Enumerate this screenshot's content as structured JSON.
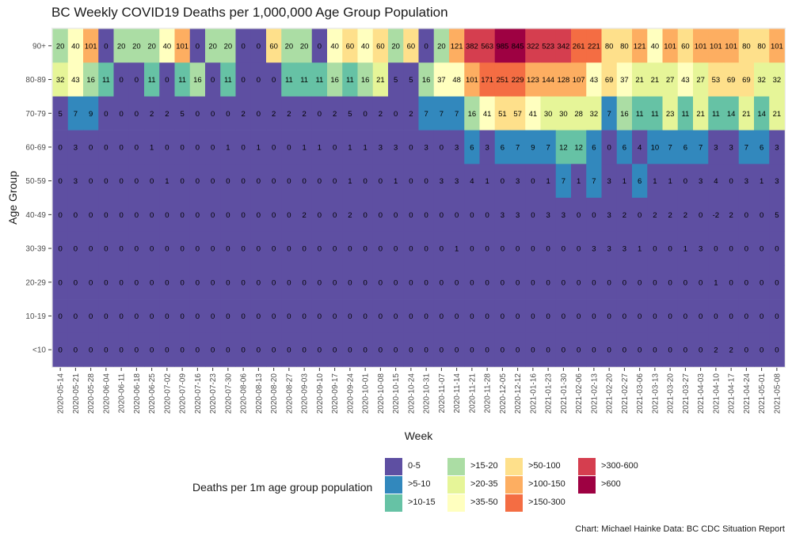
{
  "chart_data": {
    "type": "heatmap",
    "title": "BC Weekly COVID19 Deaths per 1,000,000 Age Group Population",
    "xlabel": "Week",
    "ylabel": "Age Group",
    "caption": "Chart: Michael Hainke Data: BC CDC Situation Report",
    "x": [
      "2020-05-14",
      "2020-05-21",
      "2020-05-28",
      "2020-06-04",
      "2020-06-11",
      "2020-06-18",
      "2020-06-25",
      "2020-07-02",
      "2020-07-09",
      "2020-07-16",
      "2020-07-23",
      "2020-07-30",
      "2020-08-06",
      "2020-08-13",
      "2020-08-20",
      "2020-08-27",
      "2020-09-03",
      "2020-09-10",
      "2020-09-17",
      "2020-09-24",
      "2020-10-01",
      "2020-10-08",
      "2020-10-15",
      "2020-10-24",
      "2020-10-31",
      "2020-11-07",
      "2020-11-14",
      "2020-11-21",
      "2020-11-28",
      "2020-12-05",
      "2020-12-12",
      "2021-01-16",
      "2021-01-23",
      "2021-01-30",
      "2021-02-06",
      "2021-02-13",
      "2021-02-20",
      "2021-02-27",
      "2021-03-06",
      "2021-03-13",
      "2021-03-20",
      "2021-03-27",
      "2021-04-03",
      "2021-04-10",
      "2021-04-17",
      "2021-04-24",
      "2021-05-01",
      "2021-05-08"
    ],
    "y": [
      "90+",
      "80-89",
      "70-79",
      "60-69",
      "50-59",
      "40-49",
      "30-39",
      "20-29",
      "10-19",
      "<10"
    ],
    "values": [
      [
        20,
        40,
        101,
        0,
        20,
        20,
        20,
        40,
        101,
        0,
        20,
        20,
        0,
        0,
        60,
        20,
        20,
        0,
        40,
        60,
        40,
        60,
        20,
        60,
        0,
        20,
        121,
        382,
        563,
        985,
        845,
        322,
        523,
        342,
        261,
        221,
        80,
        80,
        121,
        40,
        101,
        60,
        101,
        101,
        101,
        80,
        80,
        101
      ],
      [
        32,
        43,
        16,
        11,
        0,
        0,
        11,
        0,
        11,
        16,
        0,
        11,
        0,
        0,
        0,
        11,
        11,
        11,
        16,
        11,
        16,
        21,
        5,
        5,
        16,
        37,
        48,
        101,
        171,
        251,
        229,
        123,
        144,
        128,
        107,
        43,
        69,
        37,
        21,
        21,
        27,
        43,
        27,
        53,
        69,
        69,
        32,
        32
      ],
      [
        5,
        7,
        9,
        0,
        0,
        0,
        2,
        2,
        5,
        0,
        0,
        0,
        2,
        0,
        2,
        2,
        2,
        0,
        2,
        5,
        0,
        2,
        0,
        2,
        7,
        7,
        7,
        16,
        41,
        51,
        57,
        41,
        30,
        30,
        28,
        32,
        7,
        16,
        11,
        11,
        23,
        11,
        21,
        11,
        14,
        21,
        14,
        21
      ],
      [
        0,
        3,
        0,
        0,
        0,
        0,
        1,
        0,
        0,
        0,
        0,
        1,
        0,
        1,
        0,
        0,
        1,
        1,
        0,
        1,
        1,
        3,
        3,
        0,
        3,
        0,
        3,
        6,
        3,
        6,
        7,
        9,
        7,
        12,
        12,
        6,
        0,
        6,
        4,
        10,
        7,
        6,
        7,
        3,
        3,
        7,
        6,
        3
      ],
      [
        0,
        3,
        0,
        0,
        0,
        0,
        0,
        1,
        0,
        0,
        0,
        0,
        0,
        0,
        0,
        0,
        0,
        0,
        0,
        1,
        0,
        0,
        1,
        0,
        0,
        3,
        3,
        4,
        1,
        0,
        3,
        0,
        1,
        7,
        1,
        7,
        3,
        1,
        6,
        1,
        1,
        0,
        3,
        4,
        0,
        3,
        1,
        3
      ],
      [
        0,
        0,
        0,
        0,
        0,
        0,
        0,
        0,
        0,
        0,
        0,
        0,
        0,
        0,
        0,
        0,
        2,
        0,
        0,
        2,
        0,
        0,
        0,
        0,
        0,
        0,
        0,
        0,
        0,
        3,
        3,
        0,
        3,
        3,
        0,
        0,
        3,
        2,
        0,
        2,
        2,
        2,
        0,
        -2,
        2,
        0,
        0,
        5
      ],
      [
        0,
        0,
        0,
        0,
        0,
        0,
        0,
        0,
        0,
        0,
        0,
        0,
        0,
        0,
        0,
        0,
        0,
        0,
        0,
        0,
        0,
        0,
        0,
        0,
        0,
        0,
        1,
        0,
        0,
        0,
        0,
        0,
        0,
        0,
        0,
        3,
        3,
        3,
        1,
        0,
        0,
        1,
        3,
        0,
        0,
        0,
        0,
        0
      ],
      [
        0,
        0,
        0,
        0,
        0,
        0,
        0,
        0,
        0,
        0,
        0,
        0,
        0,
        0,
        0,
        0,
        0,
        0,
        0,
        0,
        0,
        0,
        0,
        0,
        0,
        0,
        0,
        0,
        0,
        0,
        0,
        0,
        0,
        0,
        0,
        0,
        0,
        0,
        0,
        0,
        0,
        0,
        0,
        1,
        0,
        0,
        0,
        0
      ],
      [
        0,
        0,
        0,
        0,
        0,
        0,
        0,
        0,
        0,
        0,
        0,
        0,
        0,
        0,
        0,
        0,
        0,
        0,
        0,
        0,
        0,
        0,
        0,
        0,
        0,
        0,
        0,
        0,
        0,
        0,
        0,
        0,
        0,
        0,
        0,
        0,
        0,
        0,
        0,
        0,
        0,
        0,
        0,
        0,
        0,
        0,
        0,
        0
      ],
      [
        0,
        0,
        0,
        0,
        0,
        0,
        0,
        0,
        0,
        0,
        0,
        0,
        0,
        0,
        0,
        0,
        0,
        0,
        0,
        0,
        0,
        0,
        0,
        0,
        0,
        0,
        0,
        0,
        0,
        0,
        0,
        0,
        0,
        0,
        0,
        0,
        0,
        0,
        0,
        0,
        0,
        0,
        0,
        2,
        2,
        0,
        0,
        0
      ]
    ],
    "legend": {
      "title": "Deaths per 1m age group population",
      "position": "bottom",
      "bins": [
        {
          "label": "0-5",
          "min": -1000,
          "max": 5,
          "color": "#5e4fa2"
        },
        {
          "label": ">5-10",
          "min": 5,
          "max": 10,
          "color": "#3288bd"
        },
        {
          "label": ">10-15",
          "min": 10,
          "max": 15,
          "color": "#66c2a5"
        },
        {
          "label": ">15-20",
          "min": 15,
          "max": 20,
          "color": "#abdda4"
        },
        {
          "label": ">20-35",
          "min": 20,
          "max": 35,
          "color": "#e6f598"
        },
        {
          "label": ">35-50",
          "min": 35,
          "max": 50,
          "color": "#ffffbf"
        },
        {
          "label": ">50-100",
          "min": 50,
          "max": 100,
          "color": "#fee08b"
        },
        {
          "label": ">100-150",
          "min": 100,
          "max": 150,
          "color": "#fdae61"
        },
        {
          "label": ">150-300",
          "min": 150,
          "max": 300,
          "color": "#f46d43"
        },
        {
          "label": ">300-600",
          "min": 300,
          "max": 600,
          "color": "#d53e4f"
        },
        {
          "label": ">600",
          "min": 600,
          "max": 100000,
          "color": "#9e0142"
        }
      ]
    },
    "panel_background": "#ebebeb",
    "grid": true
  }
}
